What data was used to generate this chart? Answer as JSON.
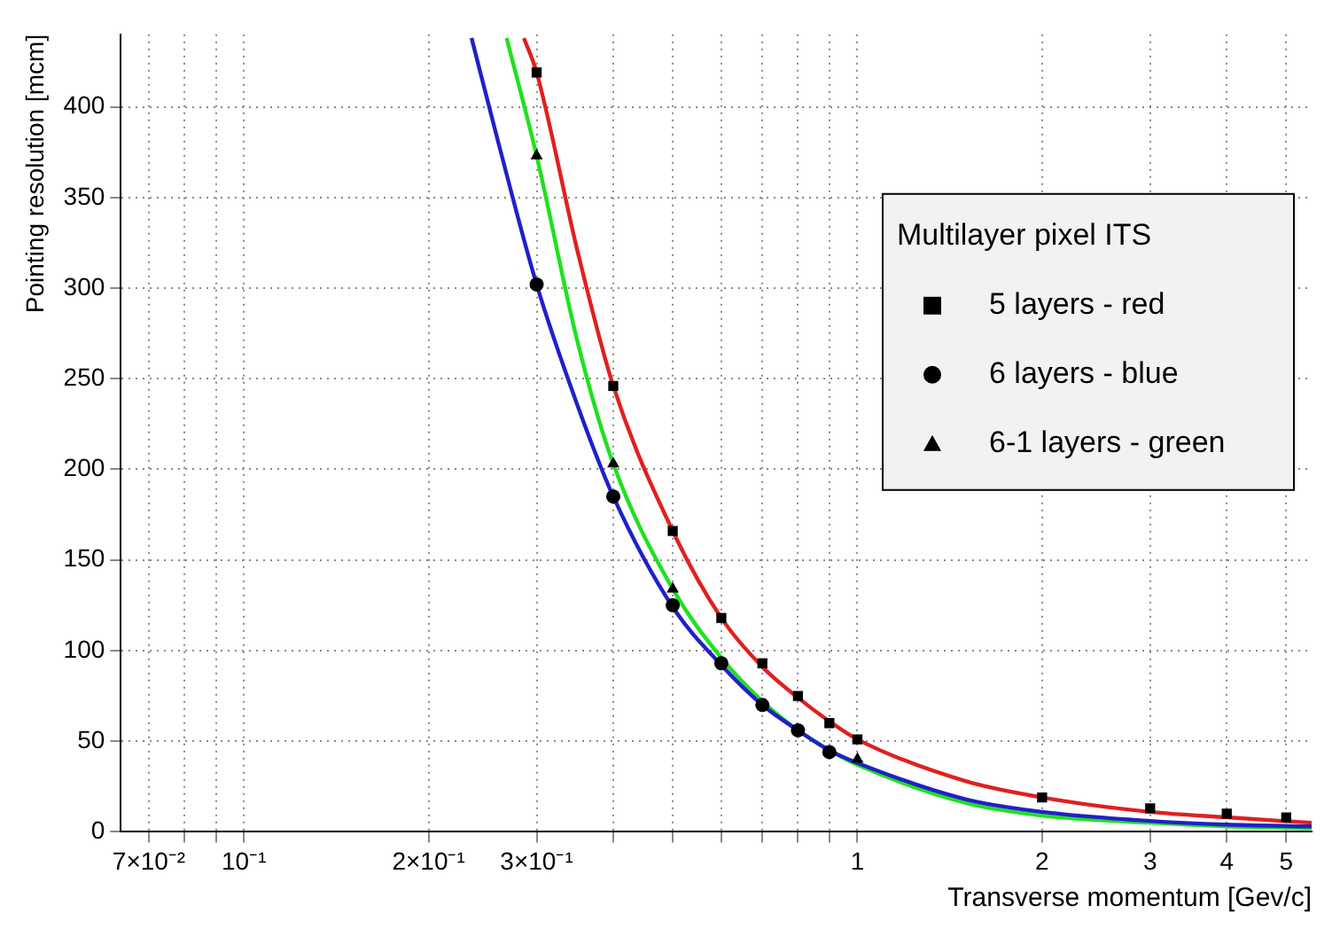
{
  "chart_data": {
    "type": "scatter",
    "xlabel": "Transverse momentum [Gev/c]",
    "ylabel": "Pointing resolution [mcm]",
    "legend_title": "Multilayer pixel ITS",
    "log": "x",
    "grid": true,
    "legend": "right",
    "x": [
      0.3,
      0.4,
      0.5,
      0.6,
      0.7,
      0.8,
      0.9,
      1,
      2,
      3,
      4,
      5
    ],
    "xlim": [
      0.063,
      5.5
    ],
    "ylim": [
      0,
      440
    ],
    "xticks": [
      {
        "value": 0.07,
        "label": "7×10⁻²"
      },
      {
        "value": 0.08,
        "label": null
      },
      {
        "value": 0.09,
        "label": null
      },
      {
        "value": 0.1,
        "label": "10⁻¹"
      },
      {
        "value": 0.2,
        "label": "2×10⁻¹"
      },
      {
        "value": 0.3,
        "label": "3×10⁻¹"
      },
      {
        "value": 0.4,
        "label": null
      },
      {
        "value": 0.5,
        "label": null
      },
      {
        "value": 0.6,
        "label": null
      },
      {
        "value": 0.7,
        "label": null
      },
      {
        "value": 0.8,
        "label": null
      },
      {
        "value": 0.9,
        "label": null
      },
      1,
      2,
      3,
      4,
      5
    ],
    "yticks": [
      0,
      50,
      100,
      150,
      200,
      250,
      300,
      350,
      400
    ],
    "series": [
      {
        "type": "line",
        "color": "#e02020",
        "marker": "none",
        "line_style": "solid",
        "x": [
          0.286,
          0.3,
          0.35,
          0.4,
          0.5,
          0.6,
          0.7,
          0.8,
          0.9,
          1,
          1.5,
          2,
          3,
          4,
          5.5
        ],
        "values": [
          438,
          419,
          320,
          246,
          166,
          118,
          91,
          74,
          61,
          51,
          28,
          19,
          11,
          8,
          5
        ]
      },
      {
        "type": "line",
        "color": "#2020c8",
        "marker": "none",
        "line_style": "solid",
        "x": [
          0.235,
          0.26,
          0.3,
          0.35,
          0.4,
          0.5,
          0.6,
          0.7,
          0.8,
          0.9,
          1,
          1.5,
          2,
          3,
          4,
          5.5
        ],
        "values": [
          438,
          380,
          302,
          235,
          185,
          124,
          92,
          70,
          56,
          45,
          38,
          18,
          11,
          6,
          4,
          3
        ]
      },
      {
        "type": "line",
        "color": "#20e020",
        "marker": "none",
        "line_style": "solid",
        "x": [
          0.268,
          0.3,
          0.35,
          0.4,
          0.5,
          0.6,
          0.7,
          0.8,
          0.9,
          1,
          1.5,
          2,
          3,
          4,
          5.5
        ],
        "values": [
          438,
          373,
          270,
          203,
          134,
          96,
          72,
          56,
          45,
          37,
          16,
          9,
          5,
          3,
          2
        ]
      },
      {
        "name": "5 layers - red",
        "type": "scatter",
        "color": "#000000",
        "marker": "square",
        "values": [
          419,
          246,
          166,
          118,
          93,
          75,
          60,
          51,
          19,
          13,
          10,
          8
        ]
      },
      {
        "name": "6 layers - blue",
        "type": "scatter",
        "color": "#000000",
        "marker": "circle",
        "values": [
          302,
          185,
          125,
          93,
          70,
          56,
          44,
          null,
          null,
          null,
          null,
          null
        ]
      },
      {
        "name": "6-1 layers - green",
        "type": "scatter",
        "color": "#000000",
        "marker": "triangle",
        "values": [
          373,
          203,
          134,
          null,
          null,
          null,
          null,
          40,
          null,
          null,
          null,
          null
        ]
      }
    ]
  }
}
